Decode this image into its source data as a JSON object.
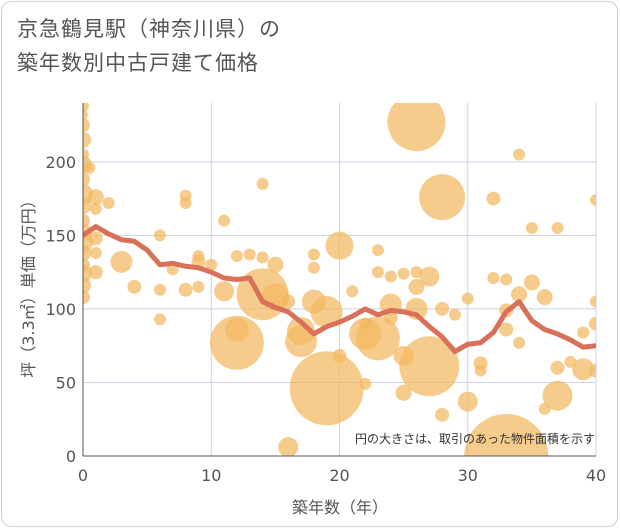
{
  "title": "京急鶴見駅（神奈川県）の\n築年数別中古戸建て価格",
  "chart_data": {
    "type": "scatter",
    "xlabel": "築年数（年）",
    "ylabel": "坪（3.3㎡）単価（万円）",
    "xlim": [
      0,
      40
    ],
    "ylim": [
      0,
      240
    ],
    "xticks": [
      "0",
      "10",
      "20",
      "30",
      "40"
    ],
    "yticks": [
      "0",
      "50",
      "100",
      "150",
      "200"
    ],
    "annotation": "円の大きさは、取引のあった物件面積を示す",
    "grid": true,
    "colors": {
      "bubble": "#f3b95f",
      "line": "#d9705a",
      "grid": "#c9d3e3"
    },
    "bubbles": [
      {
        "x": 0,
        "y": 238,
        "r": 6
      },
      {
        "x": 0,
        "y": 232,
        "r": 5
      },
      {
        "x": 0,
        "y": 225,
        "r": 7
      },
      {
        "x": 0,
        "y": 215,
        "r": 8
      },
      {
        "x": 0,
        "y": 205,
        "r": 6
      },
      {
        "x": 0,
        "y": 198,
        "r": 9
      },
      {
        "x": 0,
        "y": 188,
        "r": 7
      },
      {
        "x": 0,
        "y": 178,
        "r": 10
      },
      {
        "x": 0,
        "y": 170,
        "r": 8
      },
      {
        "x": 0,
        "y": 160,
        "r": 7
      },
      {
        "x": 0,
        "y": 152,
        "r": 9
      },
      {
        "x": 0,
        "y": 145,
        "r": 10
      },
      {
        "x": 0,
        "y": 138,
        "r": 8
      },
      {
        "x": 0,
        "y": 130,
        "r": 7
      },
      {
        "x": 0,
        "y": 124,
        "r": 9
      },
      {
        "x": 0,
        "y": 116,
        "r": 8
      },
      {
        "x": 0,
        "y": 108,
        "r": 7
      },
      {
        "x": 0.5,
        "y": 196,
        "r": 6
      },
      {
        "x": 1,
        "y": 176,
        "r": 8
      },
      {
        "x": 1,
        "y": 168,
        "r": 6
      },
      {
        "x": 1,
        "y": 148,
        "r": 7
      },
      {
        "x": 1,
        "y": 138,
        "r": 6
      },
      {
        "x": 1,
        "y": 125,
        "r": 7
      },
      {
        "x": 2,
        "y": 172,
        "r": 6
      },
      {
        "x": 3,
        "y": 132,
        "r": 11
      },
      {
        "x": 4,
        "y": 115,
        "r": 7
      },
      {
        "x": 6,
        "y": 150,
        "r": 6
      },
      {
        "x": 6,
        "y": 113,
        "r": 6
      },
      {
        "x": 6,
        "y": 93,
        "r": 6
      },
      {
        "x": 7,
        "y": 127,
        "r": 6
      },
      {
        "x": 8,
        "y": 177,
        "r": 6
      },
      {
        "x": 8,
        "y": 172,
        "r": 6
      },
      {
        "x": 8,
        "y": 113,
        "r": 7
      },
      {
        "x": 9,
        "y": 136,
        "r": 6
      },
      {
        "x": 9,
        "y": 132,
        "r": 7
      },
      {
        "x": 9,
        "y": 115,
        "r": 6
      },
      {
        "x": 10,
        "y": 130,
        "r": 6
      },
      {
        "x": 11,
        "y": 160,
        "r": 6
      },
      {
        "x": 11,
        "y": 112,
        "r": 10
      },
      {
        "x": 12,
        "y": 136,
        "r": 6
      },
      {
        "x": 12,
        "y": 86,
        "r": 12
      },
      {
        "x": 12,
        "y": 77,
        "r": 27
      },
      {
        "x": 13,
        "y": 137,
        "r": 6
      },
      {
        "x": 14,
        "y": 185,
        "r": 6
      },
      {
        "x": 14,
        "y": 135,
        "r": 6
      },
      {
        "x": 14,
        "y": 110,
        "r": 26
      },
      {
        "x": 15,
        "y": 130,
        "r": 8
      },
      {
        "x": 15,
        "y": 108,
        "r": 14
      },
      {
        "x": 16,
        "y": 105,
        "r": 7
      },
      {
        "x": 16,
        "y": 6,
        "r": 10
      },
      {
        "x": 17,
        "y": 85,
        "r": 14
      },
      {
        "x": 17,
        "y": 78,
        "r": 16
      },
      {
        "x": 18,
        "y": 137,
        "r": 6
      },
      {
        "x": 18,
        "y": 128,
        "r": 6
      },
      {
        "x": 18,
        "y": 105,
        "r": 12
      },
      {
        "x": 19,
        "y": 98,
        "r": 16
      },
      {
        "x": 19,
        "y": 46,
        "r": 37
      },
      {
        "x": 20,
        "y": 143,
        "r": 14
      },
      {
        "x": 20,
        "y": 68,
        "r": 7
      },
      {
        "x": 21,
        "y": 112,
        "r": 6
      },
      {
        "x": 22,
        "y": 90,
        "r": 6
      },
      {
        "x": 22,
        "y": 83,
        "r": 16
      },
      {
        "x": 22,
        "y": 49,
        "r": 6
      },
      {
        "x": 23,
        "y": 140,
        "r": 6
      },
      {
        "x": 23,
        "y": 125,
        "r": 6
      },
      {
        "x": 23,
        "y": 80,
        "r": 22
      },
      {
        "x": 24,
        "y": 122,
        "r": 6
      },
      {
        "x": 24,
        "y": 103,
        "r": 11
      },
      {
        "x": 24,
        "y": 94,
        "r": 7
      },
      {
        "x": 25,
        "y": 124,
        "r": 6
      },
      {
        "x": 25,
        "y": 68,
        "r": 10
      },
      {
        "x": 25,
        "y": 43,
        "r": 8
      },
      {
        "x": 26,
        "y": 227,
        "r": 29
      },
      {
        "x": 26,
        "y": 125,
        "r": 6
      },
      {
        "x": 26,
        "y": 115,
        "r": 8
      },
      {
        "x": 26,
        "y": 100,
        "r": 11
      },
      {
        "x": 27,
        "y": 122,
        "r": 10
      },
      {
        "x": 27,
        "y": 61,
        "r": 30
      },
      {
        "x": 28,
        "y": 176,
        "r": 23
      },
      {
        "x": 28,
        "y": 100,
        "r": 7
      },
      {
        "x": 28,
        "y": 28,
        "r": 7
      },
      {
        "x": 29,
        "y": 96,
        "r": 6
      },
      {
        "x": 30,
        "y": 107,
        "r": 6
      },
      {
        "x": 30,
        "y": 37,
        "r": 10
      },
      {
        "x": 31,
        "y": 63,
        "r": 7
      },
      {
        "x": 31,
        "y": 58,
        "r": 6
      },
      {
        "x": 32,
        "y": 175,
        "r": 7
      },
      {
        "x": 32,
        "y": 121,
        "r": 6
      },
      {
        "x": 33,
        "y": 120,
        "r": 6
      },
      {
        "x": 33,
        "y": 99,
        "r": 7
      },
      {
        "x": 33,
        "y": 86,
        "r": 7
      },
      {
        "x": 33,
        "y": 0,
        "r": 42
      },
      {
        "x": 34,
        "y": 205,
        "r": 6
      },
      {
        "x": 34,
        "y": 110,
        "r": 8
      },
      {
        "x": 34,
        "y": 77,
        "r": 6
      },
      {
        "x": 35,
        "y": 155,
        "r": 6
      },
      {
        "x": 35,
        "y": 118,
        "r": 8
      },
      {
        "x": 36,
        "y": 108,
        "r": 8
      },
      {
        "x": 36,
        "y": 32,
        "r": 6
      },
      {
        "x": 37,
        "y": 155,
        "r": 6
      },
      {
        "x": 37,
        "y": 60,
        "r": 7
      },
      {
        "x": 37,
        "y": 41,
        "r": 15
      },
      {
        "x": 38,
        "y": 64,
        "r": 6
      },
      {
        "x": 39,
        "y": 84,
        "r": 6
      },
      {
        "x": 39,
        "y": 59,
        "r": 11
      },
      {
        "x": 40,
        "y": 174,
        "r": 6
      },
      {
        "x": 40,
        "y": 105,
        "r": 6
      },
      {
        "x": 40,
        "y": 90,
        "r": 7
      },
      {
        "x": 40,
        "y": 58,
        "r": 7
      }
    ],
    "trend": {
      "x": [
        0,
        1,
        2,
        3,
        4,
        5,
        6,
        7,
        8,
        9,
        10,
        11,
        12,
        13,
        14,
        15,
        16,
        17,
        18,
        19,
        20,
        21,
        22,
        23,
        24,
        25,
        26,
        27,
        28,
        29,
        30,
        31,
        32,
        33,
        34,
        35,
        36,
        37,
        38,
        39,
        40
      ],
      "y": [
        150,
        156,
        151,
        147,
        146,
        140,
        130,
        131,
        129,
        128,
        125,
        121,
        120,
        121,
        105,
        101,
        98,
        91,
        83,
        88,
        91,
        95,
        100,
        96,
        99,
        98,
        96,
        88,
        81,
        71,
        76,
        77,
        84,
        98,
        105,
        92,
        86,
        83,
        79,
        74,
        75
      ]
    }
  }
}
